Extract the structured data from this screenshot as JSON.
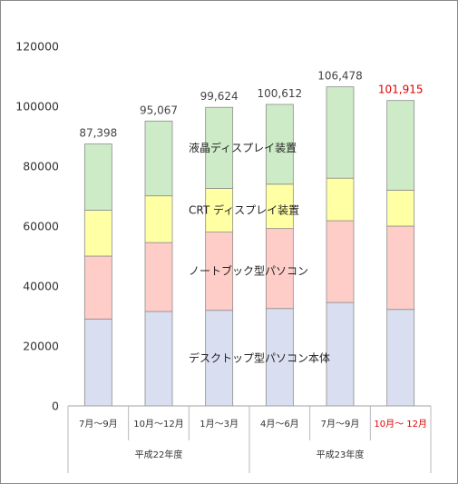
{
  "chart_data": {
    "type": "bar",
    "stacked": true,
    "categories": [
      "7月～9月",
      "10月～12月",
      "1月～3月",
      "4月～6月",
      "7月～9月",
      "10月～ 12月"
    ],
    "highlight_index": 5,
    "groups": [
      {
        "label": "平成22年度",
        "categories": [
          0,
          1,
          2
        ]
      },
      {
        "label": "平成23年度",
        "categories": [
          3,
          4,
          5
        ]
      }
    ],
    "series": [
      {
        "name": "デスクトップ型パソコン本体",
        "color": "#d9dff0",
        "values": [
          29000,
          31500,
          31900,
          32500,
          34500,
          32200
        ]
      },
      {
        "name": "ノートブック型パソコン",
        "color": "#ffcdc8",
        "values": [
          21000,
          23000,
          26100,
          26700,
          27300,
          27800
        ]
      },
      {
        "name": "CRT ディスプレイ装置",
        "color": "#ffffa4",
        "values": [
          15300,
          15600,
          14600,
          14800,
          14200,
          12000
        ]
      },
      {
        "name": "液晶ディスプレイ装置",
        "color": "#cdebc6",
        "values": [
          22098,
          24967,
          27024,
          26612,
          30478,
          29915
        ]
      }
    ],
    "totals": [
      "87,398",
      "95,067",
      "99,624",
      "100,612",
      "106,478",
      "101,915"
    ],
    "y_ticks": [
      "0",
      "20000",
      "40000",
      "60000",
      "80000",
      "100000",
      "120000"
    ],
    "ylim": [
      0,
      120000
    ],
    "grid": false,
    "legend": "inline-labels",
    "highlight_color": "#e00000"
  }
}
